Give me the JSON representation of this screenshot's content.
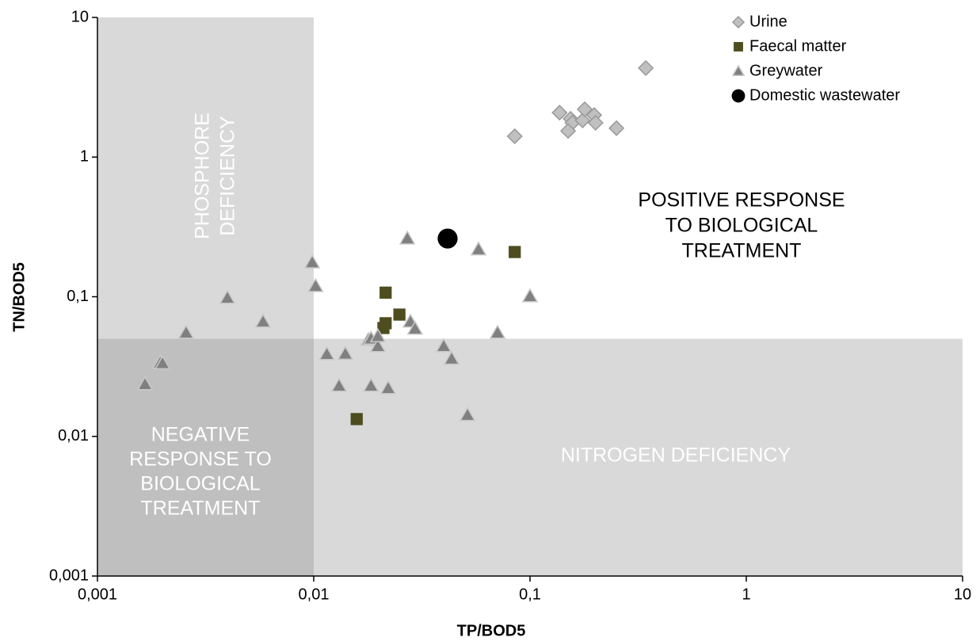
{
  "chart_data": {
    "type": "scatter",
    "xlabel": "TP/BOD5",
    "ylabel": "TN/BOD5",
    "log_x": true,
    "log_y": true,
    "xlim": [
      0.001,
      10
    ],
    "ylim": [
      0.001,
      10
    ],
    "xticks": [
      {
        "value": 0.001,
        "label": "0,001"
      },
      {
        "value": 0.01,
        "label": "0,01"
      },
      {
        "value": 0.1,
        "label": "0,1"
      },
      1,
      10
    ],
    "yticks": [
      {
        "value": 0.001,
        "label": "0,001"
      },
      {
        "value": 0.01,
        "label": "0,01"
      },
      {
        "value": 0.1,
        "label": "0,1"
      },
      1,
      10
    ],
    "thresholds": {
      "x": 0.01,
      "y": 0.05
    },
    "regions": {
      "phosphore": {
        "lines": [
          "PHOSPHORE",
          "DEFICIENCY"
        ],
        "color": "#d9d9d9"
      },
      "negative": {
        "lines": [
          "NEGATIVE",
          "RESPONSE TO",
          "BIOLOGICAL",
          "TREATMENT"
        ],
        "color": "#bfbfbf"
      },
      "nitrogen": {
        "lines": [
          "NITROGEN DEFICIENCY"
        ],
        "color": "#d9d9d9"
      },
      "positive": {
        "lines": [
          "POSITIVE RESPONSE",
          "TO BIOLOGICAL",
          "TREATMENT"
        ]
      }
    },
    "legend": "top-right",
    "series": [
      {
        "name": "Urine",
        "marker": "diamond",
        "color": "#c0c0c0",
        "x": [
          0.343,
          0.085,
          0.137,
          0.154,
          0.157,
          0.15,
          0.175,
          0.179,
          0.198,
          0.201,
          0.251
        ],
        "values": [
          4.34,
          1.41,
          2.08,
          1.88,
          1.76,
          1.54,
          1.83,
          2.2,
          2.0,
          1.76,
          1.61
        ]
      },
      {
        "name": "Faecal matter",
        "marker": "square",
        "color": "#4d4d1f",
        "x": [
          0.085,
          0.0215,
          0.0249,
          0.0215,
          0.021,
          0.0158
        ],
        "values": [
          0.209,
          0.107,
          0.0745,
          0.0646,
          0.0597,
          0.0133
        ]
      },
      {
        "name": "Greywater",
        "marker": "triangle",
        "color": "#808080",
        "x": [
          0.00166,
          0.00195,
          0.002,
          0.00257,
          0.00399,
          0.00583,
          0.00984,
          0.0102,
          0.0115,
          0.014,
          0.0131,
          0.0179,
          0.0184,
          0.0198,
          0.0198,
          0.0184,
          0.0221,
          0.0271,
          0.028,
          0.0294,
          0.0399,
          0.0434,
          0.0514,
          0.0578,
          0.0708,
          0.1
        ],
        "values": [
          0.0236,
          0.0336,
          0.0333,
          0.0552,
          0.098,
          0.0663,
          0.176,
          0.119,
          0.0388,
          0.039,
          0.023,
          0.0491,
          0.05,
          0.0442,
          0.052,
          0.023,
          0.0221,
          0.261,
          0.0663,
          0.0589,
          0.0442,
          0.0359,
          0.0142,
          0.218,
          0.0552,
          0.1007
        ]
      },
      {
        "name": "Domestic wastewater",
        "marker": "circle",
        "color": "#000000",
        "x": [
          0.0416
        ],
        "values": [
          0.261
        ]
      }
    ]
  }
}
